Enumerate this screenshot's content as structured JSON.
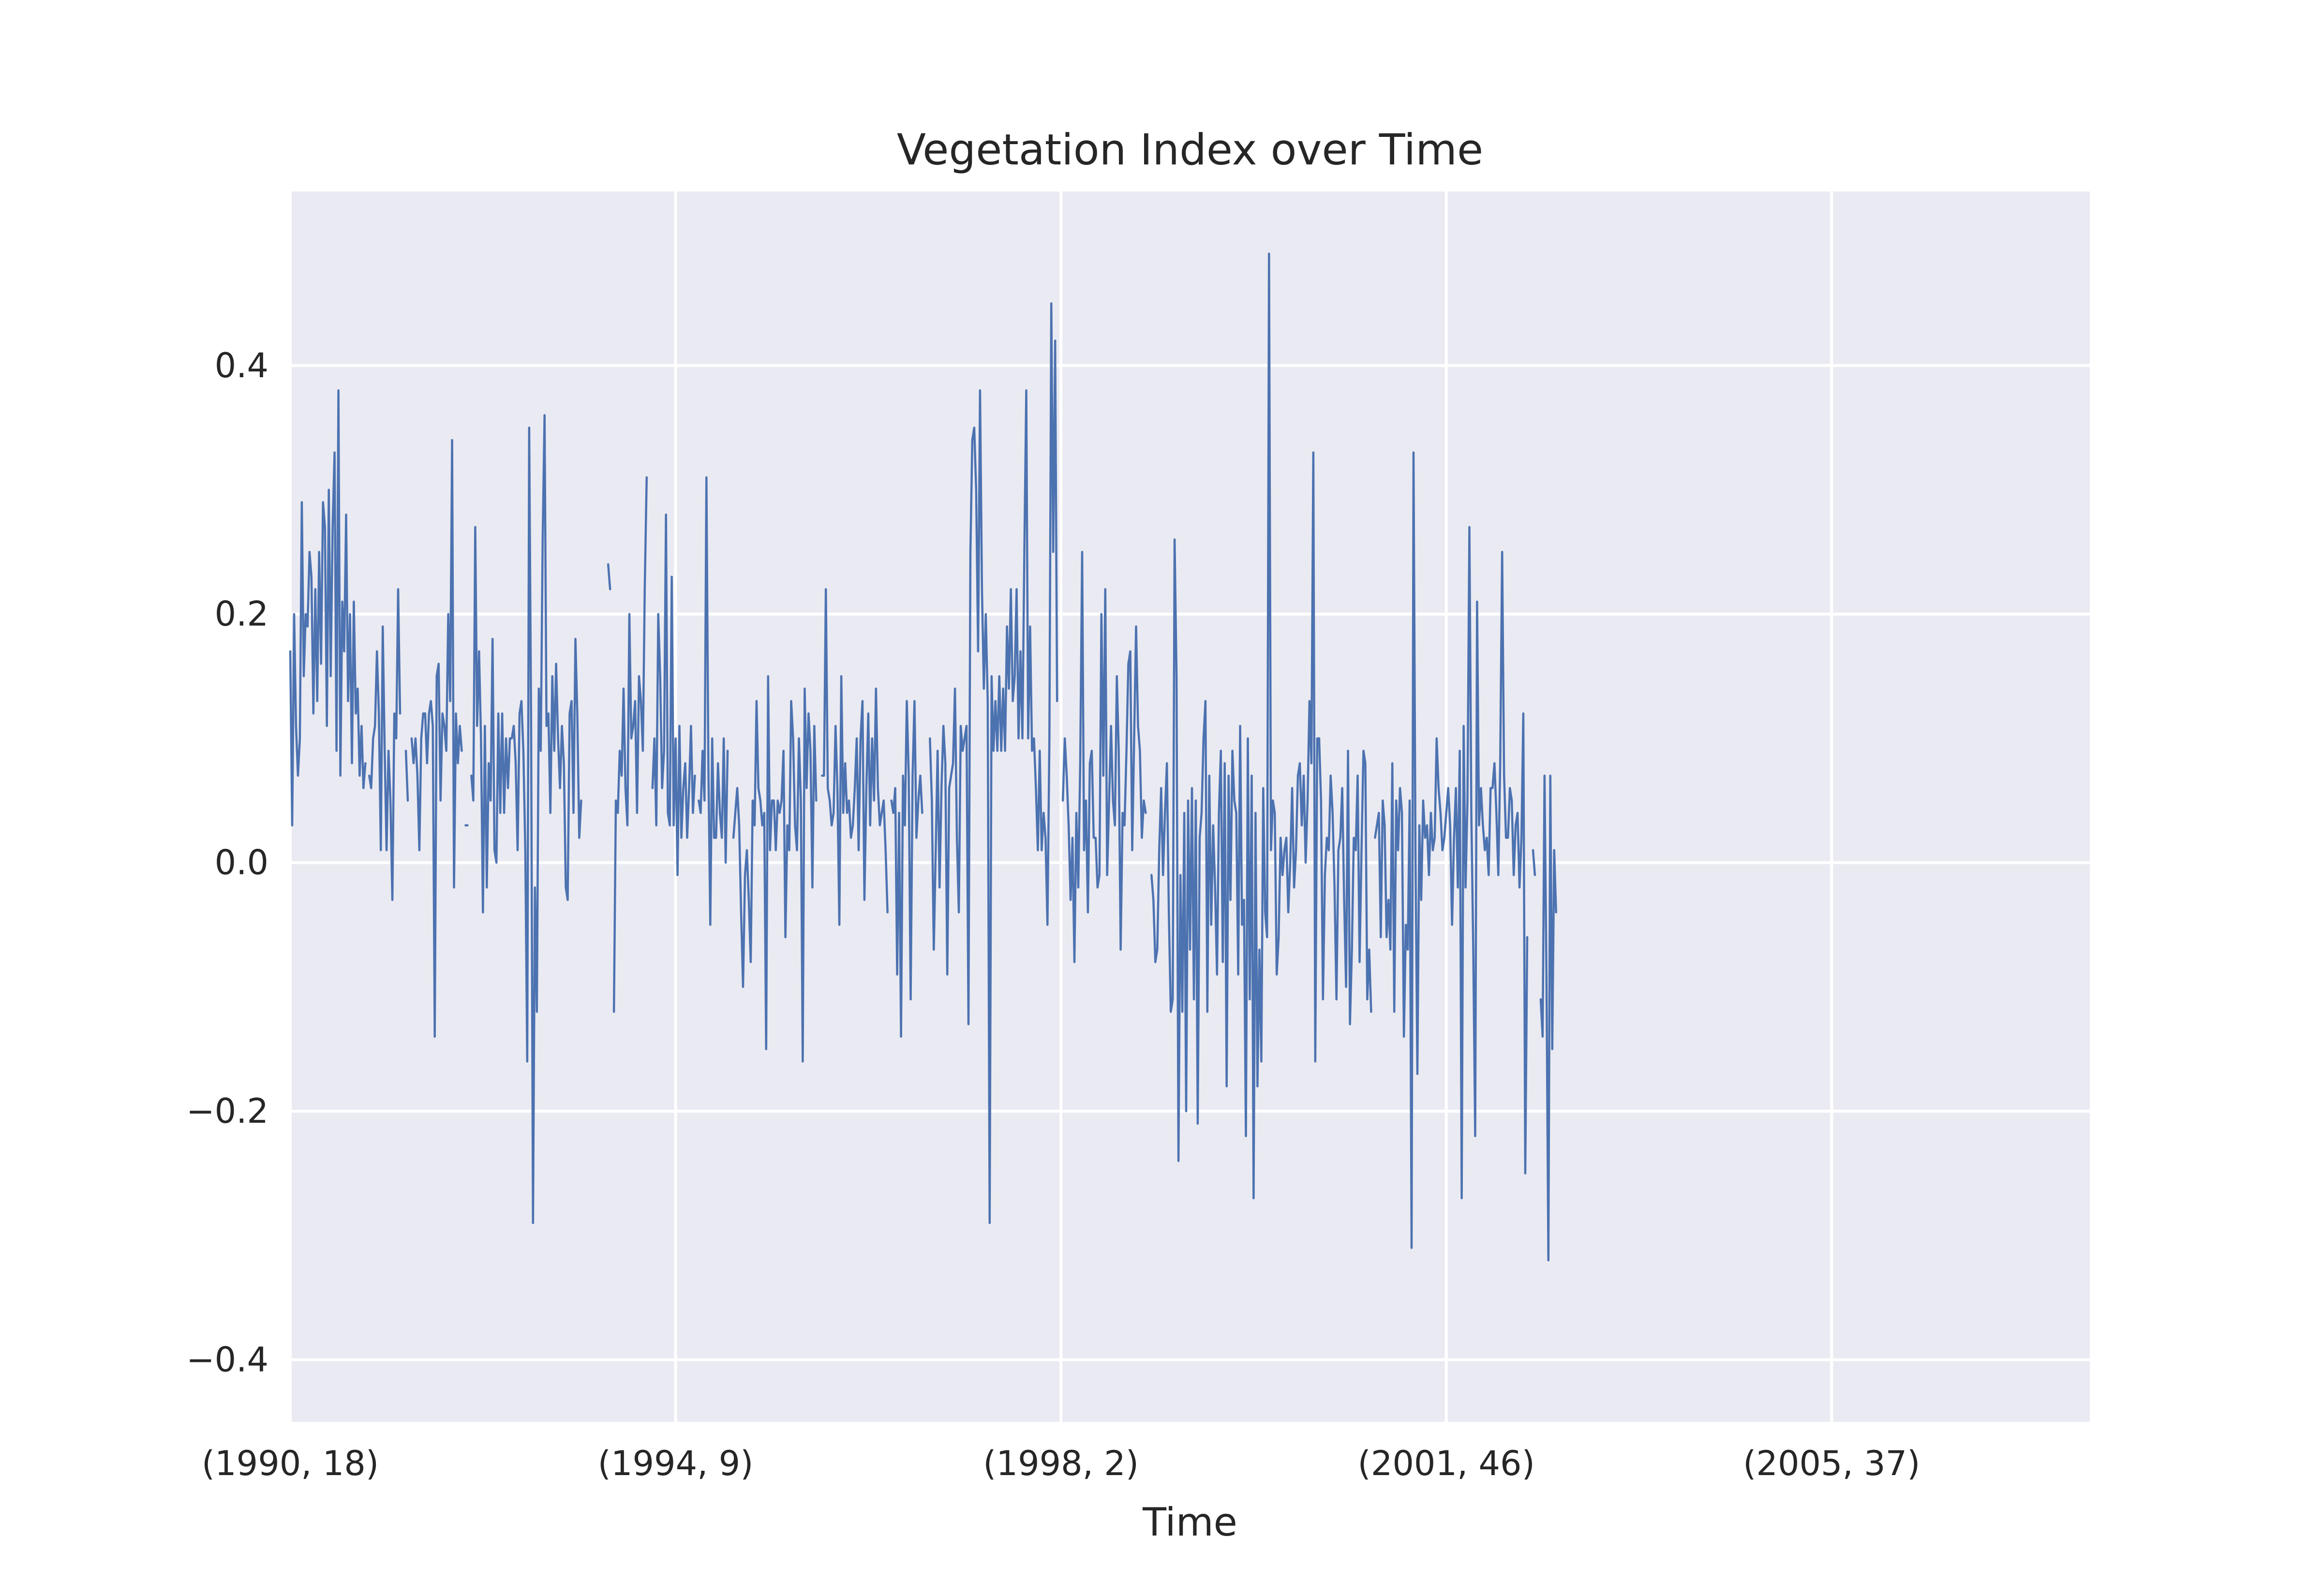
{
  "chart_data": {
    "type": "line",
    "title": "Vegetation Index over Time",
    "xlabel": "Time",
    "ylabel": "",
    "grid": true,
    "legend": "none",
    "colors": {
      "plot_bg": "#eaeaf2",
      "grid": "#ffffff",
      "line": "#4c72b0"
    },
    "xlim": [
      0,
      934
    ],
    "ylim": [
      -0.45,
      0.54
    ],
    "x_ticks": [
      {
        "pos": 0,
        "label": "(1990, 18)"
      },
      {
        "pos": 200,
        "label": "(1994, 9)"
      },
      {
        "pos": 400,
        "label": "(1998, 2)"
      },
      {
        "pos": 600,
        "label": "(2001, 46)"
      },
      {
        "pos": 800,
        "label": "(2005, 37)"
      }
    ],
    "y_ticks": [
      {
        "value": -0.4,
        "label": "−0.4"
      },
      {
        "value": -0.2,
        "label": "−0.2"
      },
      {
        "value": 0.0,
        "label": "0.0"
      },
      {
        "value": 0.2,
        "label": "0.2"
      },
      {
        "value": 0.4,
        "label": "0.4"
      }
    ],
    "series": [
      {
        "values": [
          0.17,
          0.03,
          0.2,
          0.11,
          0.07,
          0.1,
          0.29,
          0.15,
          0.2,
          0.19,
          0.25,
          0.23,
          0.12,
          0.22,
          0.13,
          0.25,
          0.16,
          0.29,
          0.27,
          0.11,
          0.3,
          0.15,
          0.27,
          0.33,
          0.09,
          0.38,
          0.07,
          0.21,
          0.17,
          0.28,
          0.13,
          0.2,
          0.08,
          0.21,
          0.12,
          0.14,
          0.07,
          0.11,
          0.06,
          0.08,
          null,
          0.07,
          0.06,
          0.1,
          0.11,
          0.17,
          0.12,
          0.01,
          0.19,
          0.09,
          0.01,
          0.09,
          0.05,
          -0.03,
          0.12,
          0.1,
          0.22,
          0.12,
          null,
          null,
          0.09,
          0.05,
          null,
          0.1,
          0.08,
          0.1,
          0.07,
          0.01,
          0.1,
          0.12,
          0.12,
          0.08,
          0.12,
          0.13,
          0.11,
          -0.14,
          0.15,
          0.16,
          0.05,
          0.12,
          0.11,
          0.09,
          0.2,
          0.13,
          0.34,
          -0.02,
          0.12,
          0.08,
          0.11,
          0.09,
          null,
          0.03,
          0.03,
          null,
          0.07,
          0.05,
          0.27,
          0.11,
          0.17,
          0.1,
          -0.04,
          0.11,
          -0.02,
          0.08,
          0.05,
          0.18,
          0.01,
          0,
          0.12,
          0.04,
          0.12,
          0.04,
          0.1,
          0.06,
          0.1,
          0.1,
          0.11,
          0.08,
          0.01,
          0.12,
          0.13,
          0.09,
          0.01,
          -0.16,
          0.35,
          0.11,
          -0.29,
          -0.02,
          -0.12,
          0.14,
          0.09,
          0.26,
          0.36,
          0.11,
          0.12,
          0.04,
          0.15,
          0.09,
          0.16,
          0.1,
          0.06,
          0.11,
          0.08,
          -0.02,
          -0.03,
          0.12,
          0.13,
          0.04,
          0.18,
          0.12,
          0.02,
          0.05,
          null,
          null,
          null,
          null,
          null,
          null,
          null,
          null,
          null,
          null,
          null,
          null,
          null,
          0.24,
          0.22,
          null,
          -0.12,
          0.05,
          0.04,
          0.09,
          0.07,
          0.14,
          0.06,
          0.03,
          0.2,
          0.1,
          0.11,
          0.13,
          0.04,
          0.15,
          0.13,
          0.09,
          0.22,
          0.31,
          null,
          null,
          0.06,
          0.1,
          0.03,
          0.2,
          0.15,
          0.06,
          0.09,
          0.28,
          0.04,
          0.03,
          0.23,
          0.03,
          0.1,
          -0.01,
          0.11,
          0.02,
          0.06,
          0.08,
          0.02,
          0.06,
          0.11,
          0.04,
          0.07,
          null,
          0.05,
          0.04,
          0.09,
          0.05,
          0.31,
          0.08,
          -0.05,
          0.1,
          0.02,
          0.02,
          0.08,
          0.04,
          0.02,
          0.1,
          0,
          0.09,
          null,
          null,
          0.02,
          0.04,
          0.06,
          0.03,
          -0.04,
          -0.1,
          -0.01,
          0.01,
          -0.03,
          -0.08,
          0.05,
          0.03,
          0.13,
          0.06,
          0.05,
          0.03,
          0.04,
          -0.15,
          0.15,
          0.01,
          0.05,
          0.05,
          0.01,
          0.05,
          0.04,
          0.05,
          0.09,
          -0.06,
          0.03,
          0.01,
          0.13,
          0.1,
          0.03,
          0.01,
          0.1,
          0.05,
          -0.16,
          0.14,
          0.06,
          0.12,
          0.09,
          -0.02,
          0.11,
          0.05,
          null,
          null,
          0.07,
          0.07,
          0.22,
          0.06,
          0.05,
          0.03,
          0.04,
          0.11,
          0.06,
          -0.05,
          0.15,
          0.04,
          0.08,
          0.04,
          0.05,
          0.02,
          0.03,
          0.06,
          0.1,
          0.01,
          0.1,
          0.13,
          -0.03,
          0.06,
          0.12,
          0.03,
          0.1,
          0.05,
          0.14,
          0.06,
          0.03,
          0.04,
          0.05,
          0.01,
          -0.04,
          null,
          0.05,
          0.04,
          0.06,
          -0.09,
          0.04,
          -0.14,
          0.07,
          0.03,
          0.13,
          0.07,
          -0.11,
          0.07,
          0.13,
          0.02,
          0.05,
          0.07,
          0.04,
          null,
          0.04,
          null,
          0.1,
          0.05,
          -0.07,
          0.01,
          0.09,
          -0.02,
          0.06,
          0.11,
          0.08,
          -0.09,
          0.06,
          0.07,
          0.08,
          0.14,
          0.02,
          -0.04,
          0.11,
          0.09,
          0.1,
          0.11,
          -0.13,
          0.25,
          0.34,
          0.35,
          0.3,
          0.17,
          0.38,
          0.22,
          0.14,
          0.2,
          0.13,
          -0.29,
          0.15,
          0.09,
          0.13,
          0.09,
          0.15,
          0.09,
          0.14,
          0.09,
          0.19,
          0.14,
          0.22,
          0.13,
          0.15,
          0.22,
          0.1,
          0.17,
          0.1,
          0.25,
          0.38,
          0.1,
          0.19,
          0.09,
          0.1,
          0.06,
          0.01,
          0.09,
          0.01,
          0.04,
          0.02,
          -0.05,
          0.1,
          0.45,
          0.25,
          0.42,
          0.13,
          null,
          null,
          0.05,
          0.1,
          0.07,
          0.03,
          -0.03,
          0.02,
          -0.08,
          0.04,
          -0.02,
          0.08,
          0.25,
          0.01,
          0.05,
          -0.04,
          0.08,
          0.09,
          0.02,
          0.02,
          -0.02,
          -0.01,
          0.2,
          0.07,
          0.22,
          -0.01,
          0.05,
          0.11,
          0.05,
          0.03,
          0.15,
          0.09,
          -0.07,
          0.04,
          0.03,
          0.09,
          0.16,
          0.17,
          0.01,
          0.1,
          0.19,
          0.11,
          0.09,
          0.02,
          0.05,
          0.04,
          null,
          null,
          -0.01,
          -0.03,
          -0.08,
          -0.07,
          0.01,
          0.06,
          -0.01,
          0.04,
          0.08,
          -0.04,
          -0.12,
          -0.11,
          0.26,
          0.15,
          -0.24,
          -0.01,
          -0.12,
          0.04,
          -0.2,
          0.05,
          -0.07,
          0.06,
          -0.11,
          0.05,
          -0.21,
          0.02,
          0.04,
          0.1,
          0.13,
          -0.12,
          0.07,
          -0.05,
          0.03,
          -0.02,
          -0.09,
          0.04,
          0.09,
          -0.08,
          0.08,
          -0.18,
          0.07,
          -0.03,
          0.09,
          0.05,
          0.04,
          -0.09,
          0.11,
          -0.05,
          -0.03,
          -0.22,
          0.1,
          -0.11,
          0.07,
          -0.27,
          0.04,
          -0.18,
          -0.07,
          -0.16,
          0.06,
          -0.04,
          -0.06,
          0.49,
          0.01,
          0.05,
          0.04,
          -0.09,
          -0.06,
          0.02,
          -0.01,
          0.01,
          0.02,
          -0.04,
          0,
          0.06,
          -0.02,
          0.01,
          0.07,
          0.08,
          0.03,
          0.07,
          0,
          0.05,
          0.13,
          0.08,
          0.33,
          -0.16,
          0.1,
          0.1,
          0.05,
          -0.11,
          -0.01,
          0.02,
          0.01,
          0.07,
          0.04,
          -0.02,
          -0.11,
          0.01,
          0.02,
          0.06,
          -0.03,
          -0.1,
          0.09,
          -0.13,
          -0.07,
          0.02,
          0.01,
          0.07,
          -0.08,
          0.01,
          0.09,
          0.08,
          -0.11,
          -0.07,
          -0.12,
          null,
          0.02,
          0.03,
          0.04,
          -0.06,
          0.05,
          0.03,
          -0.06,
          -0.03,
          -0.07,
          0.08,
          -0.12,
          0.05,
          0.01,
          0.06,
          0.04,
          -0.14,
          -0.05,
          -0.07,
          0.05,
          -0.31,
          0.33,
          0.01,
          -0.17,
          0.03,
          -0.03,
          0.05,
          0.02,
          0.03,
          -0.01,
          0.04,
          0.01,
          0.02,
          0.1,
          0.06,
          0.04,
          0.01,
          0.02,
          0.04,
          0.06,
          0.03,
          -0.05,
          0.02,
          0.06,
          -0.02,
          0.09,
          -0.27,
          0.11,
          -0.02,
          0.05,
          0.27,
          0.04,
          -0.07,
          -0.22,
          0.21,
          0.03,
          0.06,
          0.03,
          0.01,
          0.02,
          -0.01,
          0.06,
          0.06,
          0.08,
          0.04,
          -0.01,
          0.08,
          0.25,
          0.07,
          0.02,
          0.02,
          0.06,
          0.05,
          -0.01,
          0.03,
          0.04,
          -0.02,
          0.02,
          0.12,
          -0.25,
          -0.06,
          null,
          null,
          0.01,
          -0.01,
          null,
          null,
          -0.11,
          -0.14,
          0.07,
          -0.09,
          -0.32,
          0.07,
          -0.15,
          0.01,
          -0.04
        ]
      }
    ]
  }
}
